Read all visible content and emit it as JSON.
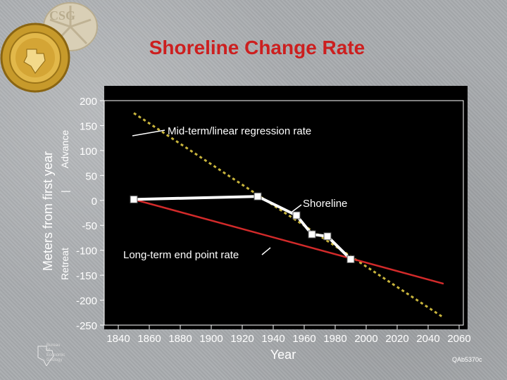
{
  "title": "Shoreline Change Rate",
  "chart_data": {
    "type": "line",
    "xlabel": "Year",
    "ylabel": "Meters from first year",
    "y_side_labels": {
      "advance": "Advance",
      "retreat": "Retreat",
      "separator": "|"
    },
    "xlim": [
      1840,
      2060
    ],
    "ylim": [
      -250,
      200
    ],
    "xticks": [
      1840,
      1860,
      1880,
      1900,
      1920,
      1940,
      1960,
      1980,
      2000,
      2020,
      2040,
      2060
    ],
    "yticks": [
      200,
      150,
      100,
      50,
      0,
      -50,
      -100,
      -150,
      -200,
      -250
    ],
    "grid": false,
    "series": [
      {
        "name": "Shoreline",
        "style": "solid-with-square-markers",
        "color": "#ffffff",
        "x": [
          1850,
          1930,
          1955,
          1965,
          1975,
          1990
        ],
        "y": [
          2,
          8,
          -30,
          -68,
          -72,
          -118
        ]
      },
      {
        "name": "Mid-term/linear regression rate",
        "style": "dashed",
        "color": "#c8b43c",
        "x": [
          1850,
          2050
        ],
        "y": [
          175,
          -235
        ]
      },
      {
        "name": "Long-term end point rate",
        "style": "solid",
        "color": "#d22a2a",
        "x": [
          1850,
          2050
        ],
        "y": [
          2,
          -167
        ]
      }
    ],
    "annotations": [
      {
        "text": "Mid-term/linear regression rate",
        "series": "Mid-term/linear regression rate"
      },
      {
        "text": "Shoreline",
        "series": "Shoreline"
      },
      {
        "text": "Long-term end point rate",
        "series": "Long-term end point rate"
      }
    ]
  },
  "footer": {
    "ref_code": "QAb5370c",
    "org_lines": [
      "Bureau",
      "of",
      "Economic",
      "Geology"
    ]
  },
  "logo": {
    "seal_letters": "CSG"
  },
  "colors": {
    "title": "#cc1f1f",
    "plot_bg": "#000000",
    "axis_text": "#ffffff"
  }
}
